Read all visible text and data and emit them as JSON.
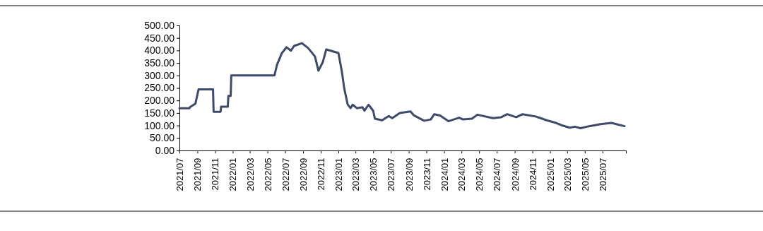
{
  "chart_data": {
    "type": "line",
    "xlim": [
      "2021-07-01",
      "2025-09-20"
    ],
    "xticks": [
      {
        "value": "2021-07",
        "label": "2021/07"
      },
      {
        "value": "2021-09",
        "label": "2021/09"
      },
      {
        "value": "2021-11",
        "label": "2021/11"
      },
      {
        "value": "2022-01",
        "label": "2022/01"
      },
      {
        "value": "2022-03",
        "label": "2022/03"
      },
      {
        "value": "2022-05",
        "label": "2022/05"
      },
      {
        "value": "2022-07",
        "label": "2022/07"
      },
      {
        "value": "2022-09",
        "label": "2022/09"
      },
      {
        "value": "2022-11",
        "label": "2022/11"
      },
      {
        "value": "2023-01",
        "label": "2023/01"
      },
      {
        "value": "2023-03",
        "label": "2023/03"
      },
      {
        "value": "2023-05",
        "label": "2023/05"
      },
      {
        "value": "2023-07",
        "label": "2023/07"
      },
      {
        "value": "2023-09",
        "label": "2023/09"
      },
      {
        "value": "2023-11",
        "label": "2023/11"
      },
      {
        "value": "2024-01",
        "label": "2024/01"
      },
      {
        "value": "2024-03",
        "label": "2024/03"
      },
      {
        "value": "2024-05",
        "label": "2024/05"
      },
      {
        "value": "2024-07",
        "label": "2024/07"
      },
      {
        "value": "2024-09",
        "label": "2024/09"
      },
      {
        "value": "2024-11",
        "label": "2024/11"
      },
      {
        "value": "2025-01",
        "label": "2025/01"
      },
      {
        "value": "2025-03",
        "label": "2025/03"
      },
      {
        "value": "2025-05",
        "label": "2025/05"
      },
      {
        "value": "2025-07",
        "label": "2025/07"
      }
    ],
    "ylim": [
      0,
      500
    ],
    "yticks": [
      {
        "value": 0,
        "label": "0.00"
      },
      {
        "value": 50,
        "label": "50.00"
      },
      {
        "value": 100,
        "label": "100.00"
      },
      {
        "value": 150,
        "label": "150.00"
      },
      {
        "value": 200,
        "label": "200.00"
      },
      {
        "value": 250,
        "label": "250.00"
      },
      {
        "value": 300,
        "label": "300.00"
      },
      {
        "value": 350,
        "label": "350.00"
      },
      {
        "value": 400,
        "label": "400.00"
      },
      {
        "value": 450,
        "label": "450.00"
      },
      {
        "value": 500,
        "label": "500.00"
      }
    ],
    "grid": false,
    "marker": "none",
    "line_style": "solid",
    "x": [
      "2021-07-01",
      "2021-08-05",
      "2021-08-06",
      "2021-08-25",
      "2021-09-05",
      "2021-10-25",
      "2021-10-27",
      "2021-11-20",
      "2021-11-22",
      "2021-12-15",
      "2021-12-17",
      "2021-12-25",
      "2021-12-27",
      "2022-05-25",
      "2022-06-03",
      "2022-06-20",
      "2022-07-06",
      "2022-07-21",
      "2022-08-01",
      "2022-08-28",
      "2022-09-18",
      "2022-10-12",
      "2022-10-24",
      "2022-11-08",
      "2022-11-20",
      "2023-01-01",
      "2023-01-13",
      "2023-01-21",
      "2023-02-02",
      "2023-02-12",
      "2023-02-19",
      "2023-03-06",
      "2023-03-25",
      "2023-04-01",
      "2023-04-15",
      "2023-05-01",
      "2023-05-07",
      "2023-06-01",
      "2023-06-24",
      "2023-07-06",
      "2023-08-01",
      "2023-09-07",
      "2023-09-19",
      "2023-10-24",
      "2023-11-16",
      "2023-11-28",
      "2023-12-18",
      "2024-01-16",
      "2024-02-22",
      "2024-03-06",
      "2024-04-06",
      "2024-04-25",
      "2024-06-18",
      "2024-07-16",
      "2024-08-06",
      "2024-09-06",
      "2024-09-28",
      "2024-11-12",
      "2024-12-22",
      "2025-01-22",
      "2025-02-09",
      "2025-03-10",
      "2025-03-28",
      "2025-04-16",
      "2025-05-16",
      "2025-06-24",
      "2025-08-01",
      "2025-09-15"
    ],
    "series": [
      {
        "color": "#3f4a6b",
        "values": [
          169,
          169,
          173,
          187,
          244,
          244,
          155,
          155,
          175,
          175,
          218,
          218,
          300,
          300,
          343,
          390,
          413,
          399,
          418,
          429,
          410,
          376,
          319,
          353,
          404,
          390,
          315,
          249,
          184,
          169,
          183,
          169,
          173,
          159,
          183,
          159,
          127,
          121,
          138,
          129,
          150,
          156,
          140,
          119,
          124,
          145,
          140,
          117,
          131,
          124,
          127,
          143,
          129,
          133,
          145,
          133,
          145,
          136,
          120,
          110,
          101,
          91,
          95,
          89,
          97,
          105,
          110,
          97
        ]
      }
    ]
  }
}
